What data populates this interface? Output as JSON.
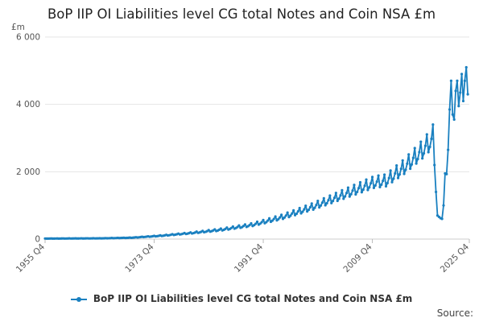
{
  "chart_data": {
    "type": "line",
    "title": "BoP IIP OI Liabilities level CG total Notes and Coin NSA £m",
    "y_unit_label": "£m",
    "xlabel": "",
    "ylabel": "",
    "ylim": [
      0,
      6000
    ],
    "y_ticks": [
      "0",
      "2 000",
      "4 000",
      "6 000"
    ],
    "x_tick_labels": [
      "1955 Q4",
      "1973 Q4",
      "1991 Q4",
      "2009 Q4",
      "2025 Q4"
    ],
    "x_tick_years": [
      1955.75,
      1973.75,
      1991.75,
      2009.75,
      2025.75
    ],
    "xlim": [
      1955.75,
      2025.75
    ],
    "grid": true,
    "legend_position": "bottom",
    "series": [
      {
        "name": "BoP IIP OI Liabilities level CG total Notes and Coin NSA £m",
        "color": "#1a80c0",
        "anchors": [
          [
            1955.75,
            15
          ],
          [
            1960.0,
            18
          ],
          [
            1965.0,
            22
          ],
          [
            1970.0,
            40
          ],
          [
            1975.0,
            100
          ],
          [
            1980.0,
            180
          ],
          [
            1985.0,
            280
          ],
          [
            1990.0,
            420
          ],
          [
            1995.0,
            650
          ],
          [
            2000.0,
            950
          ],
          [
            2005.0,
            1300
          ],
          [
            2010.0,
            1650
          ],
          [
            2012.0,
            1700
          ],
          [
            2015.0,
            2100
          ],
          [
            2018.0,
            2600
          ],
          [
            2019.5,
            2900
          ]
        ],
        "seasonal_amplitude": 0.13,
        "tail": [
          [
            2019.75,
            3400
          ],
          [
            2020.0,
            2200
          ],
          [
            2020.25,
            1400
          ],
          [
            2020.5,
            700
          ],
          [
            2020.75,
            660
          ],
          [
            2021.0,
            620
          ],
          [
            2021.25,
            600
          ],
          [
            2021.5,
            1000
          ],
          [
            2021.75,
            1950
          ],
          [
            2022.0,
            1930
          ],
          [
            2022.25,
            2650
          ],
          [
            2022.5,
            3850
          ],
          [
            2022.75,
            4700
          ],
          [
            2023.0,
            3700
          ],
          [
            2023.25,
            3550
          ],
          [
            2023.5,
            4400
          ],
          [
            2023.75,
            4700
          ],
          [
            2024.0,
            3950
          ],
          [
            2024.25,
            4350
          ],
          [
            2024.5,
            4900
          ],
          [
            2024.75,
            4100
          ],
          [
            2025.0,
            4700
          ],
          [
            2025.25,
            5100
          ],
          [
            2025.5,
            4300
          ]
        ]
      }
    ]
  },
  "source_label": "Source:"
}
